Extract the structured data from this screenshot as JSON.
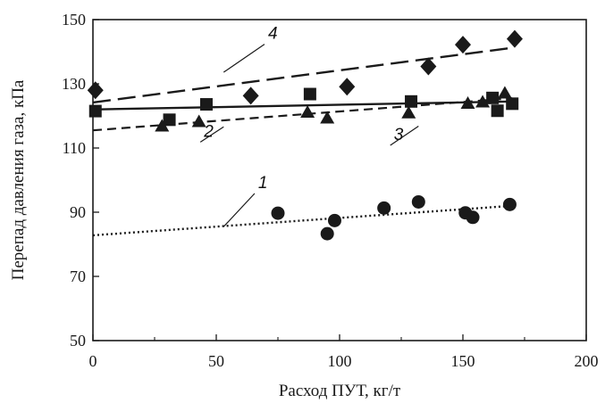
{
  "chart_data": {
    "type": "scatter",
    "xlabel": "Расход ПУТ, кг/т",
    "ylabel": "Перепад давления газа, кПа",
    "xlim": [
      0,
      200
    ],
    "ylim": [
      50,
      150
    ],
    "xticks": [
      0,
      50,
      100,
      150,
      200
    ],
    "yticks": [
      50,
      70,
      90,
      110,
      130,
      150
    ],
    "grid": false,
    "legend": "none",
    "series": [
      {
        "name": "1",
        "marker": "circle",
        "line_style": "dotted",
        "trend": [
          [
            0,
            82.8
          ],
          [
            170,
            92.0
          ]
        ],
        "label_anchor": [
          53,
          85.5
        ],
        "label_pos": [
          67,
          97.5
        ],
        "points": [
          [
            75,
            89.7
          ],
          [
            95,
            83.3
          ],
          [
            98,
            87.4
          ],
          [
            118,
            91.3
          ],
          [
            132,
            93.2
          ],
          [
            151,
            89.8
          ],
          [
            154,
            88.4
          ],
          [
            169,
            92.4
          ]
        ]
      },
      {
        "name": "2",
        "marker": "triangle",
        "line_style": "dashed",
        "trend": [
          [
            0,
            115.5
          ],
          [
            170,
            125.5
          ]
        ],
        "label_anchor": [
          53,
          116.6
        ],
        "label_pos": [
          45,
          113.5
        ],
        "points": [
          [
            28,
            116.8
          ],
          [
            43,
            118.2
          ],
          [
            87,
            121.1
          ],
          [
            95,
            119.3
          ],
          [
            128,
            120.9
          ],
          [
            152,
            123.9
          ],
          [
            158,
            124.3
          ],
          [
            167,
            127.1
          ]
        ]
      },
      {
        "name": "3",
        "marker": "square",
        "line_style": "solid",
        "trend": [
          [
            0,
            122.0
          ],
          [
            170,
            124.5
          ]
        ],
        "label_anchor": [
          132,
          116.8
        ],
        "label_pos": [
          122,
          112.5
        ],
        "points": [
          [
            1,
            121.5
          ],
          [
            31,
            118.8
          ],
          [
            46,
            123.6
          ],
          [
            88,
            126.8
          ],
          [
            129,
            124.5
          ],
          [
            162,
            125.6
          ],
          [
            164,
            121.6
          ],
          [
            170,
            123.8
          ]
        ]
      },
      {
        "name": "4",
        "marker": "diamond",
        "line_style": "longdash",
        "trend": [
          [
            0,
            124.2
          ],
          [
            170,
            141.2
          ]
        ],
        "label_anchor": [
          53,
          133.6
        ],
        "label_pos": [
          71,
          144.0
        ],
        "points": [
          [
            1,
            128.0
          ],
          [
            64,
            126.3
          ],
          [
            103,
            129.1
          ],
          [
            136,
            135.4
          ],
          [
            150,
            142.2
          ],
          [
            171,
            144.0
          ]
        ]
      }
    ]
  }
}
